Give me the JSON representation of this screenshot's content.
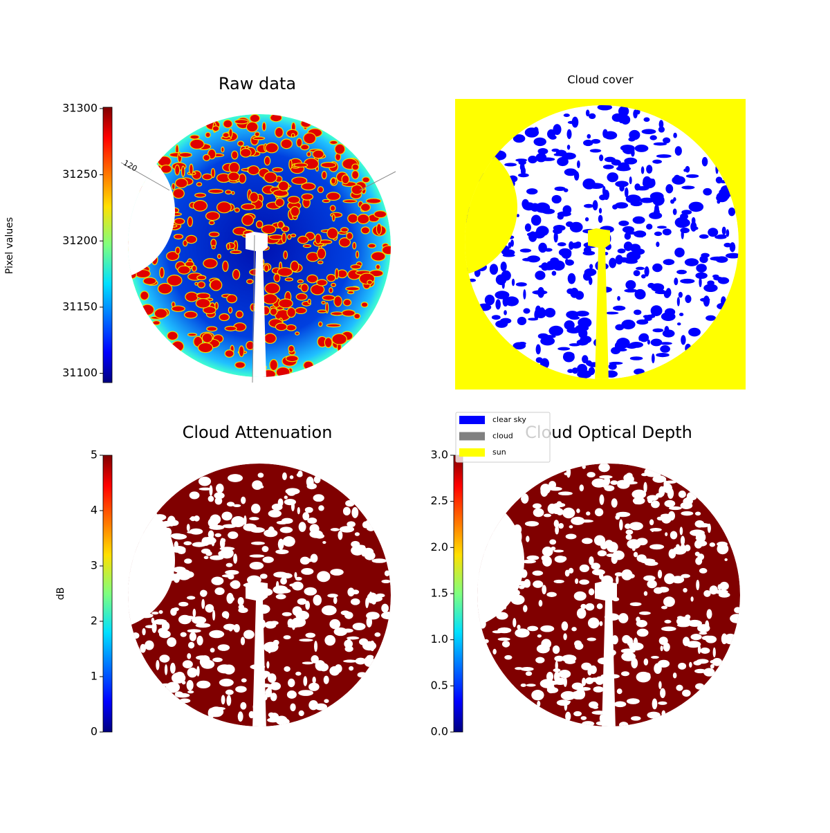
{
  "chart_data": [
    {
      "type": "image",
      "title": "Raw data",
      "colorbar_label": "Pixel values",
      "colormap": "jet",
      "ylim": [
        31093,
        31301
      ],
      "yticks": [
        31100,
        31150,
        31200,
        31250,
        31300
      ],
      "annotations": [
        "120"
      ]
    },
    {
      "type": "image",
      "title": "Cloud cover",
      "legend": [
        {
          "name": "clear sky",
          "color": "#0000ff"
        },
        {
          "name": "cloud",
          "color": "#808080"
        },
        {
          "name": "sun",
          "color": "#ffff00"
        }
      ]
    },
    {
      "type": "image",
      "title": "Cloud Attenuation",
      "colorbar_label": "dB",
      "colormap": "jet",
      "ylim": [
        0,
        5
      ],
      "yticks": [
        0,
        1,
        2,
        3,
        4,
        5
      ]
    },
    {
      "type": "image",
      "title": "Cloud Optical Depth",
      "colormap": "jet",
      "ylim": [
        0,
        3
      ],
      "yticks": [
        {
          "value": 0,
          "label": "0.0"
        },
        0.5,
        {
          "value": 1,
          "label": "1.0"
        },
        1.5,
        {
          "value": 2,
          "label": "2.0"
        },
        2.5,
        {
          "value": 3,
          "label": "3.0"
        }
      ]
    }
  ]
}
